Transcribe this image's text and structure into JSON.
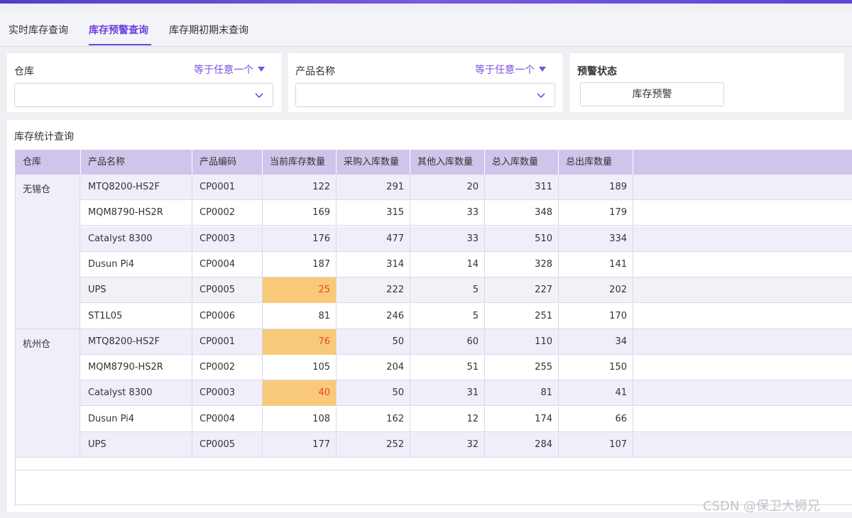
{
  "tabs": [
    {
      "label": "实时库存查询",
      "active": false
    },
    {
      "label": "库存预警查询",
      "active": true
    },
    {
      "label": "库存期初期末查询",
      "active": false
    }
  ],
  "filters": {
    "warehouse": {
      "label": "仓库",
      "operator": "等于任意一个",
      "value": ""
    },
    "product": {
      "label": "产品名称",
      "operator": "等于任意一个",
      "value": ""
    },
    "status": {
      "label": "预警状态",
      "button": "库存预警"
    }
  },
  "panel": {
    "title": "库存统计查询"
  },
  "table": {
    "columns": [
      "仓库",
      "产品名称",
      "产品编码",
      "当前库存数量",
      "采购入库数量",
      "其他入库数量",
      "总入库数量",
      "总出库数量"
    ],
    "groups": [
      {
        "warehouse": "无锡仓",
        "rows": [
          {
            "name": "MTQ8200-HS2F",
            "code": "CP0001",
            "current": "122",
            "purchase": "291",
            "other": "20",
            "total_in": "311",
            "total_out": "189",
            "warn": false
          },
          {
            "name": "MQM8790-HS2R",
            "code": "CP0002",
            "current": "169",
            "purchase": "315",
            "other": "33",
            "total_in": "348",
            "total_out": "179",
            "warn": false
          },
          {
            "name": "Catalyst 8300",
            "code": "CP0003",
            "current": "176",
            "purchase": "477",
            "other": "33",
            "total_in": "510",
            "total_out": "334",
            "warn": false
          },
          {
            "name": "Dusun Pi4",
            "code": "CP0004",
            "current": "187",
            "purchase": "314",
            "other": "14",
            "total_in": "328",
            "total_out": "141",
            "warn": false
          },
          {
            "name": "UPS",
            "code": "CP0005",
            "current": "25",
            "purchase": "222",
            "other": "5",
            "total_in": "227",
            "total_out": "202",
            "warn": true
          },
          {
            "name": "ST1L05",
            "code": "CP0006",
            "current": "81",
            "purchase": "246",
            "other": "5",
            "total_in": "251",
            "total_out": "170",
            "warn": false
          }
        ]
      },
      {
        "warehouse": "杭州仓",
        "rows": [
          {
            "name": "MTQ8200-HS2F",
            "code": "CP0001",
            "current": "76",
            "purchase": "50",
            "other": "60",
            "total_in": "110",
            "total_out": "34",
            "warn": true
          },
          {
            "name": "MQM8790-HS2R",
            "code": "CP0002",
            "current": "105",
            "purchase": "204",
            "other": "51",
            "total_in": "255",
            "total_out": "150",
            "warn": false
          },
          {
            "name": "Catalyst 8300",
            "code": "CP0003",
            "current": "40",
            "purchase": "50",
            "other": "31",
            "total_in": "81",
            "total_out": "41",
            "warn": true
          },
          {
            "name": "Dusun Pi4",
            "code": "CP0004",
            "current": "108",
            "purchase": "162",
            "other": "12",
            "total_in": "174",
            "total_out": "66",
            "warn": false
          },
          {
            "name": "UPS",
            "code": "CP0005",
            "current": "177",
            "purchase": "252",
            "other": "32",
            "total_in": "284",
            "total_out": "107",
            "warn": false
          }
        ]
      }
    ]
  },
  "watermark": "CSDN @保卫大狮兄",
  "colors": {
    "accent": "#6d3fe0",
    "header_bg": "#cfc4ea",
    "warn_bg": "#f8c979",
    "warn_text": "#e6462e"
  }
}
